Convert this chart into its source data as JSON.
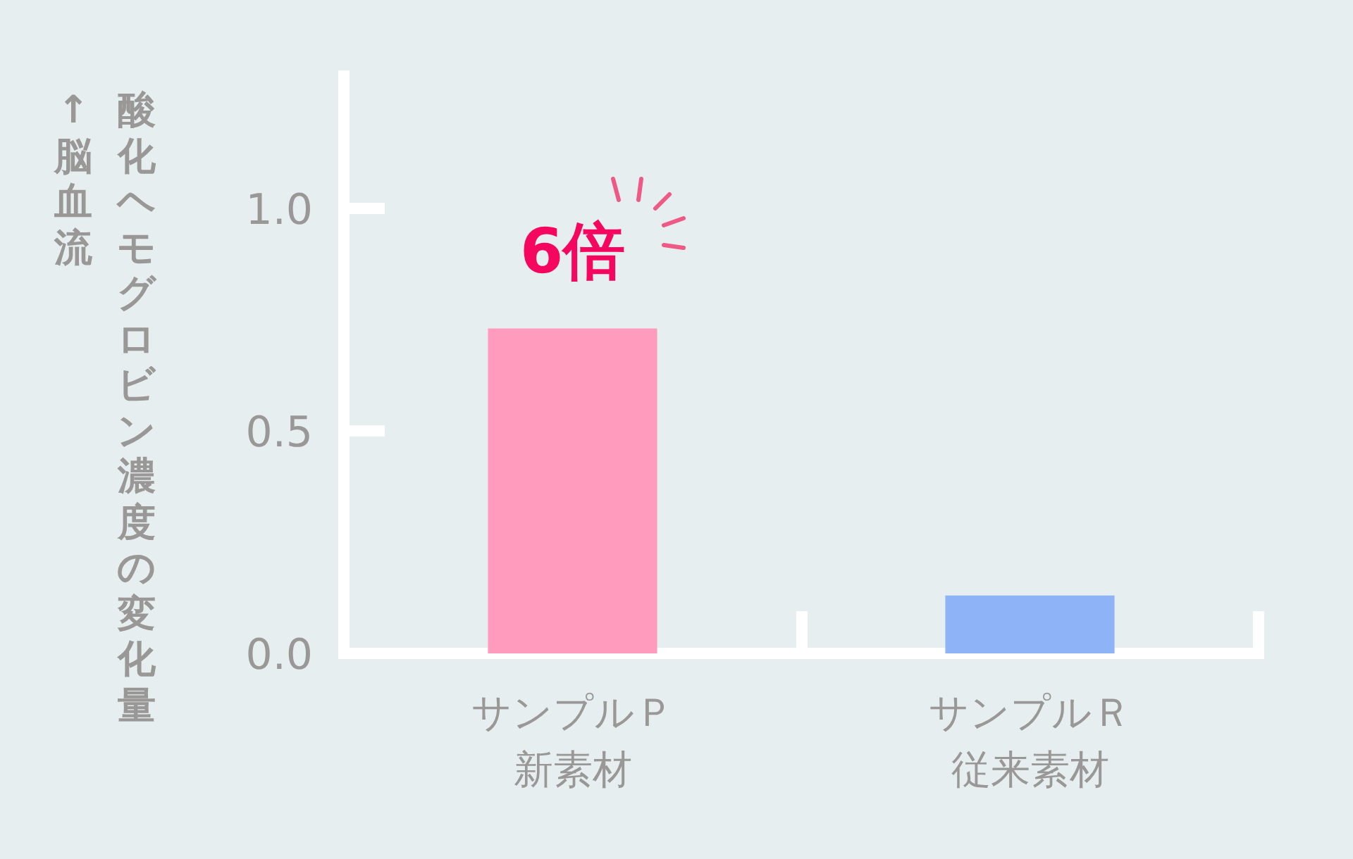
{
  "chart_data": {
    "type": "bar",
    "categories": [
      "サンプルＰ新素材",
      "サンプルＲ従来素材"
    ],
    "values": [
      0.73,
      0.13
    ],
    "colors": [
      "#ff9bbd",
      "#8fb3f7"
    ],
    "ylabel": "酸化ヘモグロビン濃度の変化量",
    "ylim": [
      0,
      1.31
    ],
    "yticks": [
      {
        "value": 0,
        "label": "0.0"
      },
      {
        "value": 0.5,
        "label": "0.5"
      },
      {
        "value": 1,
        "label": "1.0"
      }
    ],
    "annotations": [
      "↑ 脳血流",
      "6倍"
    ]
  }
}
